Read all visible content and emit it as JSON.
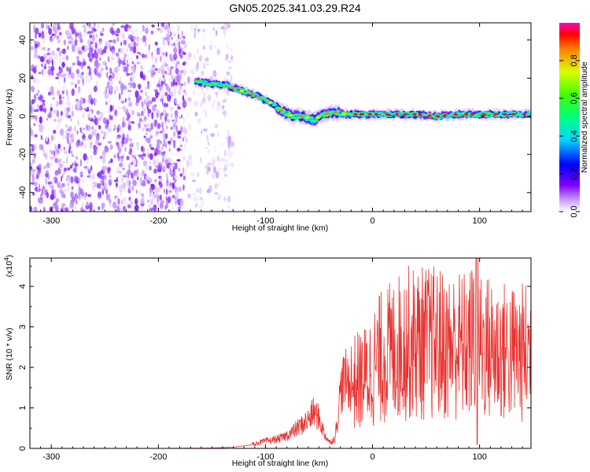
{
  "title": "GN05.2025.341.03.29.R24",
  "chart_data": [
    {
      "type": "heatmap",
      "name": "spectrogram",
      "xlabel": "Height of straight line (km)",
      "ylabel": "Frequency (Hz)",
      "xlim": [
        -320,
        148
      ],
      "ylim": [
        -50,
        49
      ],
      "xticks": [
        -300,
        -200,
        -100,
        0,
        100
      ],
      "yticks": [
        -40,
        -20,
        0,
        20,
        40
      ],
      "colorbar": {
        "label": "Normalized spectral amplitude",
        "range": [
          0,
          1
        ],
        "ticks": [
          "0.0",
          "0.2",
          "0.4",
          "0.6",
          "0.8"
        ]
      },
      "ridge": {
        "x": [
          -165,
          -150,
          -135,
          -120,
          -105,
          -95,
          -85,
          -75,
          -65,
          -55,
          -45,
          -35,
          -25,
          -15,
          0,
          20,
          40,
          60,
          80,
          100,
          120,
          148
        ],
        "y": [
          18,
          17,
          16,
          13,
          10,
          7,
          3,
          0,
          0,
          -2,
          1,
          2,
          1,
          1,
          1,
          1,
          1,
          0,
          1,
          1,
          1,
          1
        ]
      }
    },
    {
      "type": "line",
      "name": "snr",
      "xlabel": "Height of straight line (km)",
      "ylabel": "SNR (10 * v/v)",
      "yscale_label": "(x10",
      "yscale_exp": "4",
      "yscale_close": ")",
      "xlim": [
        -320,
        148
      ],
      "ylim": [
        0,
        4.7
      ],
      "xticks": [
        -300,
        -200,
        -100,
        0,
        100
      ],
      "yticks": [
        0,
        1,
        2,
        3,
        4
      ],
      "color": "#e8312e",
      "series": [
        {
          "x": [
            -320,
            -250,
            -200,
            -150,
            -130,
            -115,
            -105,
            -95,
            -85,
            -75,
            -70,
            -65,
            -60,
            -55,
            -50,
            -45,
            -40,
            -35,
            -32,
            -30,
            -28,
            -25,
            -20,
            -15,
            -10,
            -5,
            0,
            10,
            20,
            30,
            40,
            50,
            60,
            70,
            80,
            90,
            97,
            100,
            110,
            120,
            130,
            140,
            148
          ],
          "y": [
            0.0,
            0.0,
            0.0,
            0.01,
            0.03,
            0.08,
            0.15,
            0.2,
            0.25,
            0.4,
            0.5,
            0.6,
            0.7,
            0.9,
            0.75,
            0.35,
            0.15,
            0.25,
            0.9,
            1.4,
            1.6,
            1.7,
            1.6,
            1.65,
            1.7,
            1.8,
            2.0,
            2.3,
            2.4,
            2.6,
            2.6,
            2.6,
            2.6,
            2.5,
            2.55,
            2.5,
            2.9,
            2.6,
            2.45,
            2.4,
            2.35,
            2.35,
            2.4
          ]
        }
      ]
    }
  ]
}
